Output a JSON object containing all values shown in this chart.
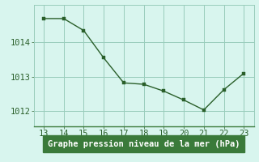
{
  "x": [
    13,
    14,
    15,
    16,
    17,
    18,
    19,
    20,
    21,
    22,
    23
  ],
  "y": [
    1014.7,
    1014.7,
    1014.35,
    1013.55,
    1012.82,
    1012.78,
    1012.58,
    1012.32,
    1012.03,
    1012.62,
    1013.1
  ],
  "xlim": [
    12.5,
    23.5
  ],
  "ylim": [
    1011.55,
    1015.1
  ],
  "xticks": [
    13,
    14,
    15,
    16,
    17,
    18,
    19,
    20,
    21,
    22,
    23
  ],
  "yticks": [
    1012,
    1013,
    1014
  ],
  "line_color": "#2a5f2a",
  "marker_color": "#2a5f2a",
  "bg_color": "#d8f5ee",
  "grid_color": "#99ccbb",
  "xlabel": "Graphe pression niveau de la mer (hPa)",
  "xlabel_color": "#ffffff",
  "xlabel_bg": "#3a7a3a",
  "tick_color": "#2a5f2a",
  "line_width": 1.0,
  "marker_size": 2.5,
  "tick_fontsize": 7.5,
  "xlabel_fontsize": 7.5
}
